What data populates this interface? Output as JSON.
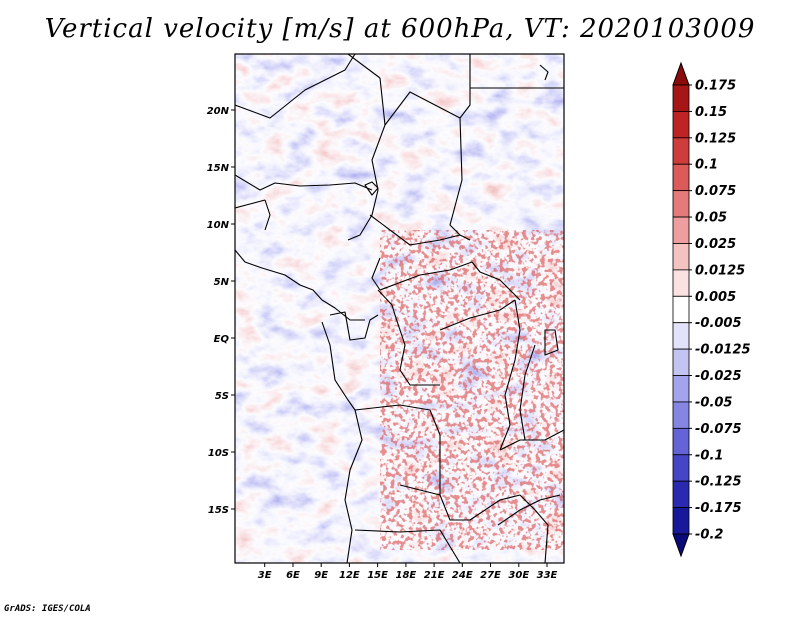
{
  "chart_data": {
    "type": "heatmap",
    "title": "Vertical velocity [m/s] at 600hPa, VT: 2020103009",
    "variable": "Vertical velocity",
    "units": "m/s",
    "level": "600hPa",
    "valid_time": "2020103009",
    "xlabel": "",
    "ylabel": "",
    "lon_range": [
      0,
      35
    ],
    "lat_range": [
      -20,
      24.5
    ],
    "x_ticks": [
      "3E",
      "6E",
      "9E",
      "12E",
      "15E",
      "18E",
      "21E",
      "24E",
      "27E",
      "30E",
      "33E"
    ],
    "x_tick_values": [
      3,
      6,
      9,
      12,
      15,
      18,
      21,
      24,
      27,
      30,
      33
    ],
    "y_ticks": [
      "20N",
      "15N",
      "10N",
      "5N",
      "EQ",
      "5S",
      "10S",
      "15S"
    ],
    "y_tick_values": [
      20,
      15,
      10,
      5,
      0,
      -5,
      -10,
      -15
    ],
    "colorbar": {
      "labels": [
        "0.175",
        "0.15",
        "0.125",
        "0.1",
        "0.075",
        "0.05",
        "0.025",
        "0.0125",
        "0.005",
        "-0.005",
        "-0.0125",
        "-0.025",
        "-0.05",
        "-0.075",
        "-0.1",
        "-0.125",
        "-0.175",
        "-0.2"
      ],
      "colors": [
        "#8b0a0a",
        "#a61616",
        "#be2424",
        "#cf3c3c",
        "#dc5a5a",
        "#e57a7a",
        "#ee9e9e",
        "#f5c2c2",
        "#fbe2e2",
        "#ffffff",
        "#e2e2fb",
        "#c4c4f3",
        "#a4a4ec",
        "#8585e2",
        "#6464d6",
        "#4545c6",
        "#2a2ab0",
        "#18189a",
        "#0a0a7a"
      ]
    }
  },
  "credit": "GrADS: IGES/COLA"
}
